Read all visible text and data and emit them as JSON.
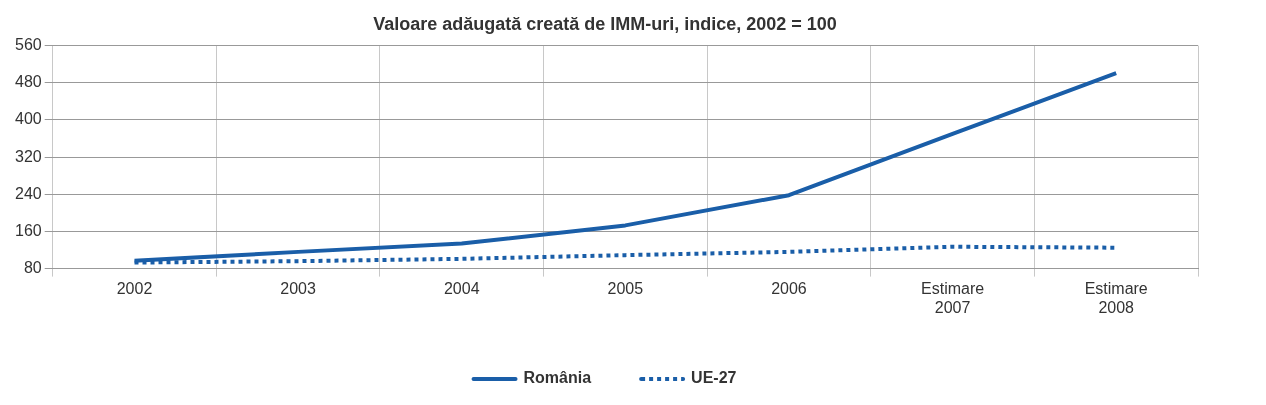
{
  "chart_data": {
    "type": "line",
    "title": "Valoare adăugată creată de IMM-uri, indice, 2002 = 100",
    "categories": [
      "2002",
      "2003",
      "2004",
      "2005",
      "2006",
      "Estimare 2007",
      "Estimare 2008"
    ],
    "series": [
      {
        "name": "România",
        "color": "#1a5ea8",
        "values": [
          97,
          116,
          134,
          173,
          238,
          370,
          501
        ],
        "line_style": "solid"
      },
      {
        "name": "UE-27",
        "color": "#1a5ea8",
        "values": [
          93,
          96,
          101,
          109,
          116,
          127,
          125
        ],
        "line_style": "dotted"
      }
    ],
    "ylim": [
      80,
      560
    ],
    "yticks": [
      80,
      160,
      240,
      320,
      400,
      480,
      560
    ],
    "grid": true,
    "legend": "bottom",
    "marker": "none"
  }
}
